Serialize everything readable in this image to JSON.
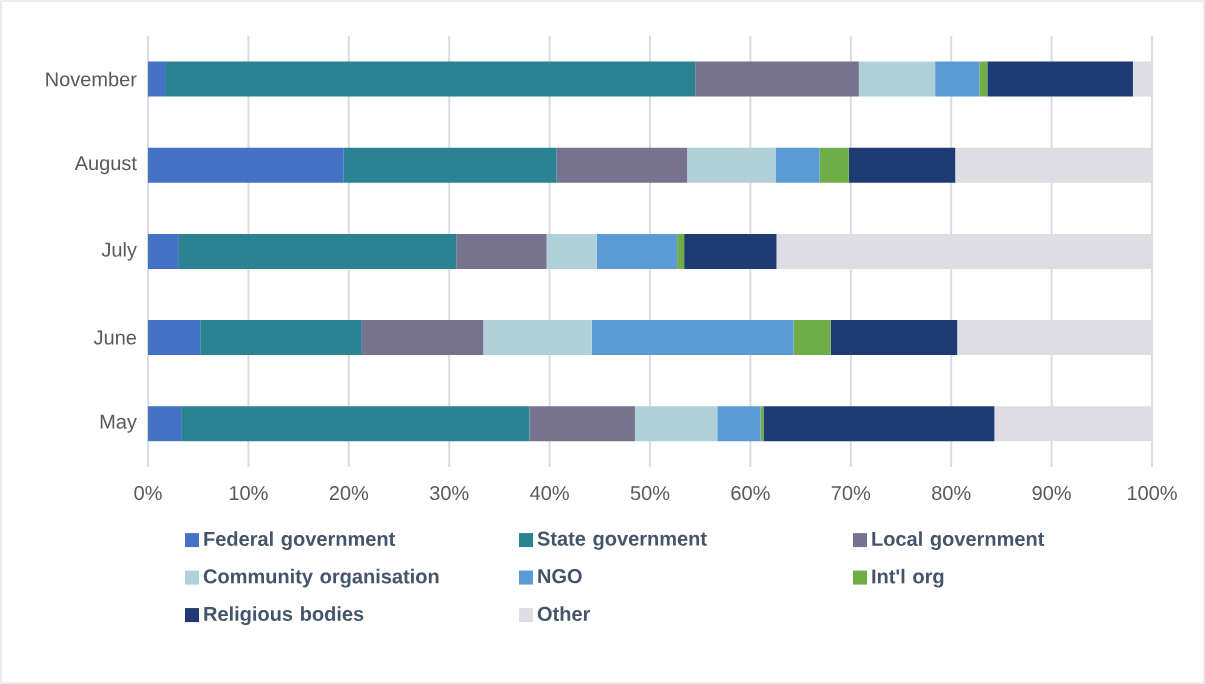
{
  "chart_data": {
    "type": "bar",
    "orientation": "horizontal",
    "stacked": true,
    "categories": [
      "November",
      "August",
      "July",
      "June",
      "May"
    ],
    "xlim": [
      0,
      100
    ],
    "xticks": [
      {
        "value": 0,
        "label": "0%"
      },
      {
        "value": 10,
        "label": "10%"
      },
      {
        "value": 20,
        "label": "20%"
      },
      {
        "value": 30,
        "label": "30%"
      },
      {
        "value": 40,
        "label": "40%"
      },
      {
        "value": 50,
        "label": "50%"
      },
      {
        "value": 60,
        "label": "60%"
      },
      {
        "value": 70,
        "label": "70%"
      },
      {
        "value": 80,
        "label": "80%"
      },
      {
        "value": 90,
        "label": "90%"
      },
      {
        "value": 100,
        "label": "100%"
      }
    ],
    "grid": "x",
    "legend": "bottom",
    "series": [
      {
        "name": "Federal government",
        "color": "#4472c4",
        "values": [
          1.7,
          19.5,
          3.0,
          5.2,
          3.3
        ]
      },
      {
        "name": "State government",
        "color": "#2a8293",
        "values": [
          52.8,
          21.2,
          27.7,
          16.1,
          34.7
        ]
      },
      {
        "name": "Local government",
        "color": "#77738e",
        "values": [
          16.3,
          13.0,
          9.0,
          12.1,
          10.5
        ]
      },
      {
        "name": "Community organisation",
        "color": "#b0d1d8",
        "values": [
          7.6,
          8.8,
          5.0,
          10.8,
          8.2
        ]
      },
      {
        "name": "NGO",
        "color": "#5b9bd5",
        "values": [
          4.4,
          4.4,
          8.0,
          20.1,
          4.3
        ]
      },
      {
        "name": "Int'l org",
        "color": "#70ad47",
        "values": [
          0.8,
          2.9,
          0.7,
          3.7,
          0.3
        ]
      },
      {
        "name": "Religious bodies",
        "color": "#1f3b73",
        "values": [
          14.5,
          10.6,
          9.2,
          12.6,
          23.0
        ]
      },
      {
        "name": "Other",
        "color": "#dedde3",
        "values": [
          1.9,
          19.6,
          37.4,
          19.4,
          15.7
        ]
      }
    ]
  }
}
